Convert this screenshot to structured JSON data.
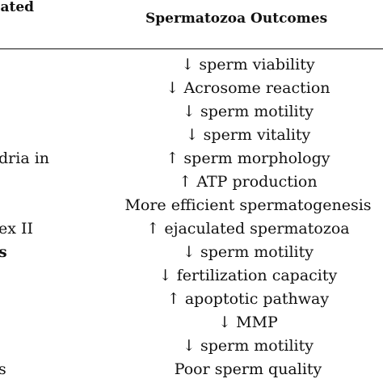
{
  "table": {
    "header_left": "iated",
    "header_right": "Spermatozoa Outcomes",
    "left_fragments": [
      {
        "text": "dria in",
        "row": 4,
        "bold": false
      },
      {
        "text": "ex II",
        "row": 7,
        "bold": false
      },
      {
        "text": "s",
        "row": 8,
        "bold": true
      },
      {
        "text": "s",
        "row": 13,
        "bold": false
      }
    ],
    "outcomes": [
      "↓ sperm viability",
      "↓ Acrosome reaction",
      "↓ sperm motility",
      "↓ sperm vitality",
      "↑ sperm morphology",
      "↑ ATP production",
      "More efficient spermatogenesis",
      "↑ ejaculated spermatozoa",
      "↓ sperm motility",
      "↓ fertilization capacity",
      "↑ apoptotic pathway",
      "↓ MMP",
      "↓ sperm motility",
      "Poor sperm quality"
    ]
  }
}
